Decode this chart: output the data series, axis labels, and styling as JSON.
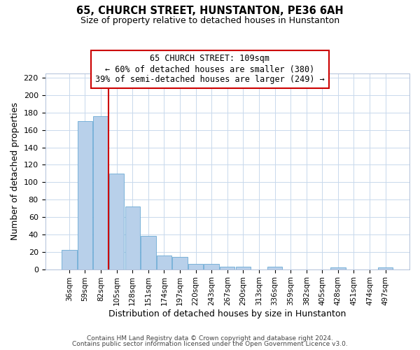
{
  "title": "65, CHURCH STREET, HUNSTANTON, PE36 6AH",
  "subtitle": "Size of property relative to detached houses in Hunstanton",
  "xlabel": "Distribution of detached houses by size in Hunstanton",
  "ylabel": "Number of detached properties",
  "footer_line1": "Contains HM Land Registry data © Crown copyright and database right 2024.",
  "footer_line2": "Contains public sector information licensed under the Open Government Licence v3.0.",
  "bar_labels": [
    "36sqm",
    "59sqm",
    "82sqm",
    "105sqm",
    "128sqm",
    "151sqm",
    "174sqm",
    "197sqm",
    "220sqm",
    "243sqm",
    "267sqm",
    "290sqm",
    "313sqm",
    "336sqm",
    "359sqm",
    "382sqm",
    "405sqm",
    "428sqm",
    "451sqm",
    "474sqm",
    "497sqm"
  ],
  "bar_values": [
    22,
    170,
    176,
    110,
    72,
    38,
    16,
    14,
    6,
    6,
    3,
    3,
    0,
    3,
    0,
    0,
    0,
    2,
    0,
    0,
    2
  ],
  "bar_color": "#b8d0ea",
  "bar_edgecolor": "#6aaad4",
  "vline_color": "#cc0000",
  "annotation_line1": "65 CHURCH STREET: 109sqm",
  "annotation_line2": "← 60% of detached houses are smaller (380)",
  "annotation_line3": "39% of semi-detached houses are larger (249) →",
  "annotation_box_color": "#ffffff",
  "annotation_box_edgecolor": "#cc0000",
  "ylim": [
    0,
    225
  ],
  "yticks": [
    0,
    20,
    40,
    60,
    80,
    100,
    120,
    140,
    160,
    180,
    200,
    220
  ],
  "background_color": "#ffffff",
  "grid_color": "#c8d8ec"
}
